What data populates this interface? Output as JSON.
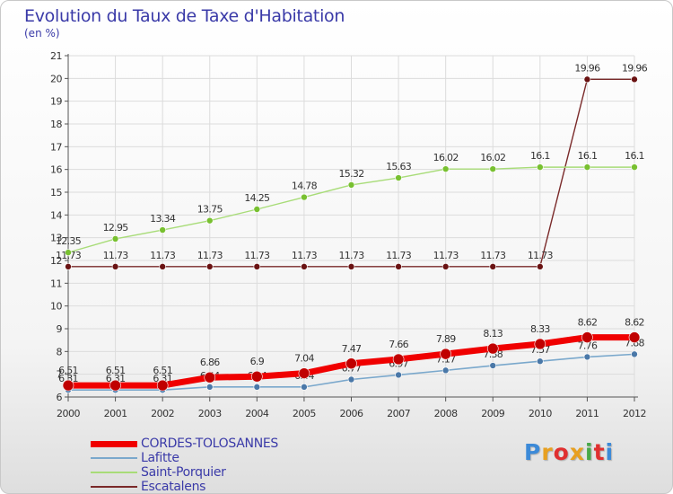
{
  "title": "Evolution du Taux de Taxe d'Habitation",
  "unit_label": "(en %)",
  "logo": {
    "letters": [
      "P",
      "r",
      "o",
      "x",
      "i",
      "t",
      "i"
    ],
    "colors": [
      "#3c8ad8",
      "#e8a020",
      "#e03030",
      "#e8a020",
      "#48a848",
      "#e03030",
      "#3c8ad8"
    ]
  },
  "chart_data": {
    "type": "line",
    "title": "Evolution du Taux de Taxe d'Habitation",
    "ylabel": "(en %)",
    "ylim": [
      6,
      21
    ],
    "yticks": [
      6,
      7,
      8,
      9,
      10,
      11,
      12,
      13,
      14,
      15,
      16,
      17,
      18,
      19,
      20,
      21
    ],
    "x": [
      "2000",
      "2001",
      "2002",
      "2003",
      "2004",
      "2005",
      "2006",
      "2007",
      "2008",
      "2009",
      "2010",
      "2011",
      "2012"
    ],
    "grid": true,
    "legend_position": "bottom-left",
    "series": [
      {
        "name": "Escatalens",
        "color": "#7a2a2a",
        "marker_color": "#6a1212",
        "values": [
          11.73,
          11.73,
          11.73,
          11.73,
          11.73,
          11.73,
          11.73,
          11.73,
          11.73,
          11.73,
          11.73,
          19.96,
          19.96
        ],
        "labels": [
          "11.73",
          "11.73",
          "11.73",
          "11.73",
          "11.73",
          "11.73",
          "11.73",
          "11.73",
          "11.73",
          "11.73",
          "11.73",
          "19.96",
          "19.96"
        ]
      },
      {
        "name": "Saint-Porquier",
        "color": "#a8dc78",
        "marker_color": "#78c030",
        "values": [
          12.35,
          12.95,
          13.34,
          13.75,
          14.25,
          14.78,
          15.32,
          15.63,
          16.02,
          16.02,
          16.1,
          16.1,
          16.1
        ],
        "labels": [
          "12.35",
          "12.95",
          "13.34",
          "13.75",
          "14.25",
          "14.78",
          "15.32",
          "15.63",
          "16.02",
          "16.02",
          "16.1",
          "16.1",
          "16.1"
        ]
      },
      {
        "name": "Lafitte",
        "color": "#7aa8cc",
        "marker_color": "#4a78a8",
        "values": [
          6.31,
          6.31,
          6.31,
          6.44,
          6.44,
          6.44,
          6.77,
          6.97,
          7.17,
          7.38,
          7.57,
          7.76,
          7.88
        ],
        "labels": [
          "6.31",
          "6.31",
          "6.31",
          "6.44",
          "6.44",
          "6.44",
          "6.77",
          "6.97",
          "7.17",
          "7.38",
          "7.57",
          "7.76",
          "7.88"
        ]
      },
      {
        "name": "CORDES-TOLOSANNES",
        "color": "#f00000",
        "marker_color": "#c00000",
        "values": [
          6.51,
          6.51,
          6.51,
          6.86,
          6.9,
          7.04,
          7.47,
          7.66,
          7.89,
          8.13,
          8.33,
          8.62,
          8.62
        ],
        "labels": [
          "6.51",
          "6.51",
          "6.51",
          "6.86",
          "6.9",
          "7.04",
          "7.47",
          "7.66",
          "7.89",
          "8.13",
          "8.33",
          "8.62",
          "8.62"
        ]
      }
    ],
    "legend": [
      "CORDES-TOLOSANNES",
      "Lafitte",
      "Saint-Porquier",
      "Escatalens"
    ]
  }
}
